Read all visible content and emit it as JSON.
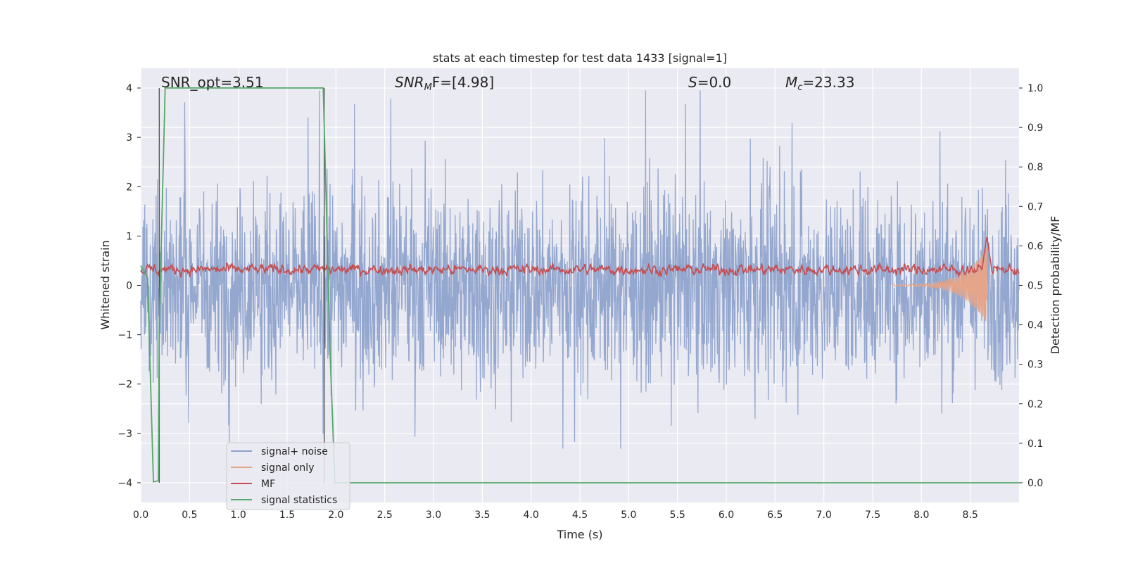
{
  "chart_data": {
    "type": "line",
    "title": "stats at each timestep for test data 1433 [signal=1]",
    "xlabel": "Time (s)",
    "ylabel_left": "Whitened strain",
    "ylabel_right": "Detection probability/MF",
    "xlim": [
      0,
      9.0
    ],
    "ylim_left": [
      -4.4,
      4.4
    ],
    "ylim_right": [
      -0.05,
      1.05
    ],
    "xticks": [
      "0.0",
      "0.5",
      "1.0",
      "1.5",
      "2.0",
      "2.5",
      "3.0",
      "3.5",
      "4.0",
      "4.5",
      "5.0",
      "5.5",
      "6.0",
      "6.5",
      "7.0",
      "7.5",
      "8.0",
      "8.5"
    ],
    "xtick_values": [
      0.0,
      0.5,
      1.0,
      1.5,
      2.0,
      2.5,
      3.0,
      3.5,
      4.0,
      4.5,
      5.0,
      5.5,
      6.0,
      6.5,
      7.0,
      7.5,
      8.0,
      8.5
    ],
    "yticks_left": [
      "4",
      "3",
      "2",
      "1",
      "0",
      "−1",
      "−2",
      "−3",
      "−4"
    ],
    "ytick_values_left": [
      4,
      3,
      2,
      1,
      0,
      -1,
      -2,
      -3,
      -4
    ],
    "yticks_right": [
      "1.0",
      "0.9",
      "0.8",
      "0.7",
      "0.6",
      "0.5",
      "0.4",
      "0.3",
      "0.2",
      "0.1",
      "0.0"
    ],
    "ytick_values_right": [
      1.0,
      0.9,
      0.8,
      0.7,
      0.6,
      0.5,
      0.4,
      0.3,
      0.2,
      0.1,
      0.0
    ],
    "grid": true,
    "legend_position": "lower-left",
    "annotations": {
      "snr_opt": "SNR_opt=3.51",
      "snr_mf_prefix": "SNR",
      "snr_mf_sub": "M",
      "snr_mf_suffix": "F=[4.98]",
      "s_prefix": "S",
      "s_suffix": "=0.0",
      "mc_prefix": "M",
      "mc_sub": "c",
      "mc_suffix": "=23.33"
    },
    "series": [
      {
        "name": "signal+ noise",
        "color": "#8fa3cc",
        "axis": "left",
        "description_note": ""
      },
      {
        "name": "signal only",
        "color": "#e5a58a",
        "axis": "left"
      },
      {
        "name": "MF",
        "color": "#c44e52",
        "axis": "left"
      },
      {
        "name": "signal statistics",
        "color": "#55a868",
        "axis": "right",
        "x": [
          0.0,
          0.07,
          0.13,
          0.18,
          0.19,
          0.25,
          1.87,
          1.94,
          1.99,
          3.5,
          9.0
        ],
        "y": [
          0.55,
          0.52,
          0.002,
          0.005,
          0.4,
          1.0,
          1.0,
          0.33,
          0.0,
          0.0,
          0.0
        ]
      }
    ],
    "vertical_lines": [
      0.19,
      1.88
    ],
    "chirp_end_time": 8.67
  }
}
